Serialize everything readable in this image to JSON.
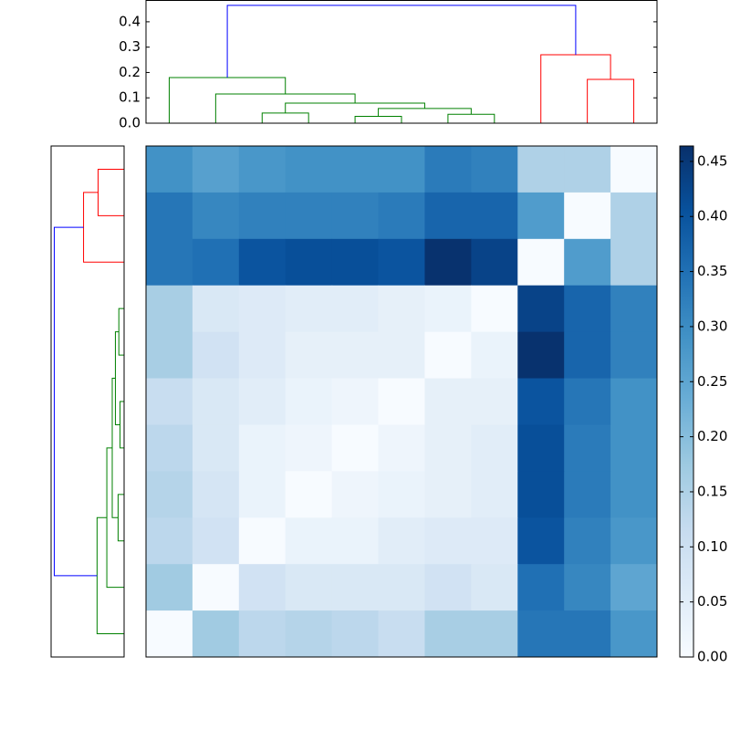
{
  "chart_data": {
    "type": "heatmap",
    "values": [
      [
        0.29,
        0.26,
        0.28,
        0.29,
        0.29,
        0.29,
        0.33,
        0.32,
        0.15,
        0.15,
        0.0
      ],
      [
        0.34,
        0.31,
        0.32,
        0.32,
        0.32,
        0.33,
        0.37,
        0.37,
        0.27,
        0.0,
        0.15
      ],
      [
        0.34,
        0.35,
        0.4,
        0.41,
        0.41,
        0.4,
        0.46,
        0.43,
        0.0,
        0.27,
        0.15
      ],
      [
        0.16,
        0.07,
        0.06,
        0.05,
        0.05,
        0.04,
        0.03,
        0.0,
        0.43,
        0.37,
        0.32
      ],
      [
        0.16,
        0.09,
        0.06,
        0.04,
        0.04,
        0.04,
        0.0,
        0.03,
        0.46,
        0.37,
        0.32
      ],
      [
        0.11,
        0.07,
        0.05,
        0.03,
        0.02,
        0.0,
        0.04,
        0.04,
        0.4,
        0.34,
        0.29
      ],
      [
        0.13,
        0.07,
        0.03,
        0.02,
        0.0,
        0.02,
        0.04,
        0.05,
        0.41,
        0.33,
        0.29
      ],
      [
        0.14,
        0.08,
        0.03,
        0.0,
        0.02,
        0.03,
        0.04,
        0.05,
        0.41,
        0.33,
        0.29
      ],
      [
        0.13,
        0.09,
        0.0,
        0.03,
        0.03,
        0.05,
        0.06,
        0.06,
        0.4,
        0.32,
        0.28
      ],
      [
        0.17,
        0.0,
        0.09,
        0.07,
        0.07,
        0.07,
        0.09,
        0.07,
        0.35,
        0.31,
        0.25
      ],
      [
        0.0,
        0.17,
        0.13,
        0.14,
        0.13,
        0.11,
        0.16,
        0.16,
        0.34,
        0.34,
        0.28
      ]
    ],
    "clim": [
      0,
      0.464
    ],
    "colormap": [
      "#f7fbff",
      "#deebf7",
      "#c6dbef",
      "#9ecae1",
      "#6baed6",
      "#4292c6",
      "#2171b5",
      "#08519c",
      "#08306b"
    ],
    "colorbar_ticks": [
      {
        "value": 0,
        "label": "0.00"
      },
      {
        "value": 0.05,
        "label": "0.05"
      },
      {
        "value": 0.1,
        "label": "0.10"
      },
      {
        "value": 0.15,
        "label": "0.15"
      },
      {
        "value": 0.2,
        "label": "0.20"
      },
      {
        "value": 0.25,
        "label": "0.25"
      },
      {
        "value": 0.3,
        "label": "0.30"
      },
      {
        "value": 0.35,
        "label": "0.35"
      },
      {
        "value": 0.4,
        "label": "0.40"
      },
      {
        "value": 0.45,
        "label": "0.45"
      }
    ],
    "dendrogram": {
      "ylim": [
        0,
        0.486
      ],
      "yticks": [
        {
          "value": 0,
          "label": "0.0"
        },
        {
          "value": 0.1,
          "label": "0.1"
        },
        {
          "value": 0.2,
          "label": "0.2"
        },
        {
          "value": 0.3,
          "label": "0.3"
        },
        {
          "value": 0.4,
          "label": "0.4"
        }
      ],
      "links": [
        {
          "color": "#008000",
          "x": [
            2,
            2,
            3,
            3
          ],
          "y": [
            0,
            0.04,
            0.04,
            0
          ]
        },
        {
          "color": "#008000",
          "x": [
            4,
            4,
            5,
            5
          ],
          "y": [
            0,
            0.027,
            0.027,
            0
          ]
        },
        {
          "color": "#008000",
          "x": [
            6,
            6,
            7,
            7
          ],
          "y": [
            0,
            0.035,
            0.035,
            0
          ]
        },
        {
          "color": "#008000",
          "x": [
            4.5,
            4.5,
            6.5,
            6.5
          ],
          "y": [
            0.027,
            0.058,
            0.058,
            0.035
          ]
        },
        {
          "color": "#008000",
          "x": [
            2.5,
            2.5,
            5.5,
            5.5
          ],
          "y": [
            0.04,
            0.079,
            0.079,
            0.058
          ]
        },
        {
          "color": "#008000",
          "x": [
            1,
            1,
            4,
            4
          ],
          "y": [
            0,
            0.115,
            0.115,
            0.079
          ]
        },
        {
          "color": "#008000",
          "x": [
            0,
            0,
            2.5,
            2.5
          ],
          "y": [
            0,
            0.18,
            0.18,
            0.115
          ]
        },
        {
          "color": "#ff0000",
          "x": [
            9,
            9,
            10,
            10
          ],
          "y": [
            0,
            0.173,
            0.173,
            0
          ]
        },
        {
          "color": "#ff0000",
          "x": [
            8,
            8,
            9.5,
            9.5
          ],
          "y": [
            0,
            0.27,
            0.27,
            0.173
          ]
        },
        {
          "color": "#0000ff",
          "x": [
            1.25,
            1.25,
            8.75,
            8.75
          ],
          "y": [
            0.18,
            0.465,
            0.465,
            0.27
          ]
        }
      ]
    }
  }
}
